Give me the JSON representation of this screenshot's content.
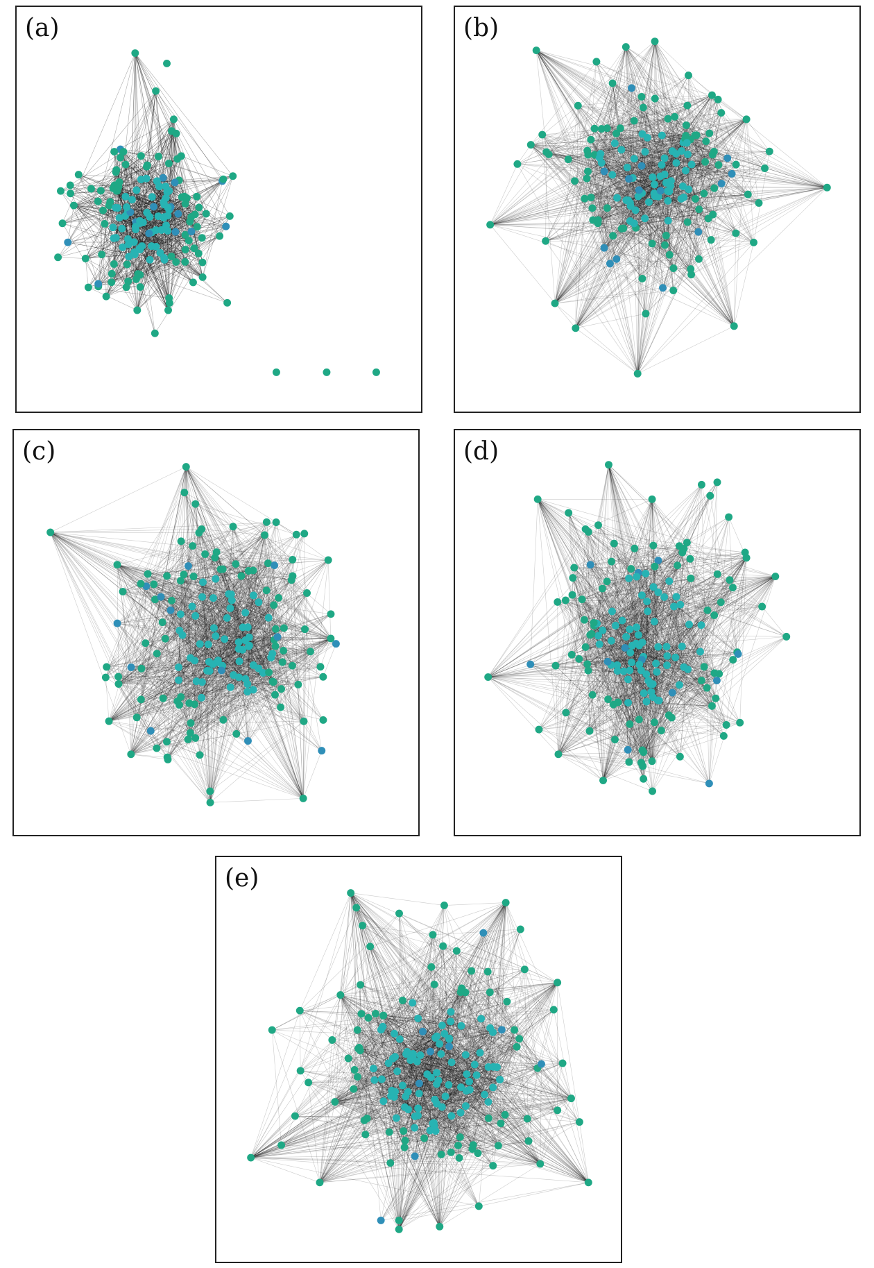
{
  "figure": {
    "panels": [
      {
        "id": "a",
        "label": "(a)"
      },
      {
        "id": "b",
        "label": "(b)"
      },
      {
        "id": "c",
        "label": "(c)"
      },
      {
        "id": "d",
        "label": "(d)"
      },
      {
        "id": "e",
        "label": "(e)"
      }
    ]
  },
  "colors": {
    "node_outer": "#1fa885",
    "node_inner": "#27b3b3",
    "node_blue": "#2f8fb8",
    "edge": "#111111",
    "frame": "#222222"
  }
}
